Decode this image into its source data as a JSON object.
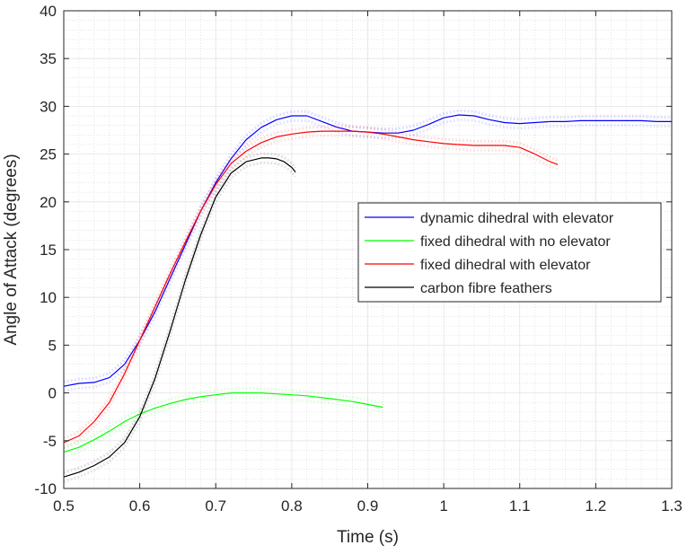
{
  "chart_data": {
    "type": "line",
    "xlabel": "Time (s)",
    "ylabel": "Angle of Attack (degrees)",
    "xlim": [
      0.5,
      1.3
    ],
    "ylim": [
      -10,
      40
    ],
    "xticks": [
      0.5,
      0.6,
      0.7,
      0.8,
      0.9,
      1,
      1.1,
      1.2,
      1.3
    ],
    "yticks": [
      -10,
      -5,
      0,
      5,
      10,
      15,
      20,
      25,
      30,
      35,
      40
    ],
    "grid": "major and minor",
    "legend_position": "right-center",
    "series": [
      {
        "name": "dynamic dihedral with elevator",
        "color": "#0000ff",
        "x": [
          0.5,
          0.52,
          0.54,
          0.56,
          0.58,
          0.6,
          0.62,
          0.64,
          0.66,
          0.68,
          0.7,
          0.72,
          0.74,
          0.76,
          0.78,
          0.8,
          0.82,
          0.84,
          0.86,
          0.88,
          0.9,
          0.92,
          0.94,
          0.96,
          0.98,
          1.0,
          1.02,
          1.04,
          1.06,
          1.08,
          1.1,
          1.12,
          1.14,
          1.16,
          1.18,
          1.2,
          1.22,
          1.24,
          1.26,
          1.28,
          1.3
        ],
        "y": [
          0.7,
          1.0,
          1.1,
          1.6,
          3.0,
          5.5,
          8.5,
          12.0,
          15.5,
          19.0,
          22.0,
          24.5,
          26.5,
          27.8,
          28.6,
          29.0,
          29.0,
          28.4,
          27.8,
          27.4,
          27.3,
          27.2,
          27.2,
          27.5,
          28.1,
          28.8,
          29.1,
          29.0,
          28.6,
          28.3,
          28.2,
          28.3,
          28.4,
          28.4,
          28.5,
          28.5,
          28.5,
          28.5,
          28.5,
          28.4,
          28.4
        ]
      },
      {
        "name": "fixed dihedral with no elevator",
        "color": "#00ff00",
        "x": [
          0.5,
          0.52,
          0.54,
          0.56,
          0.58,
          0.6,
          0.62,
          0.64,
          0.66,
          0.68,
          0.7,
          0.72,
          0.74,
          0.76,
          0.78,
          0.8,
          0.82,
          0.84,
          0.86,
          0.88,
          0.9,
          0.92
        ],
        "y": [
          -6.2,
          -5.7,
          -4.9,
          -4.0,
          -3.0,
          -2.2,
          -1.6,
          -1.1,
          -0.7,
          -0.4,
          -0.2,
          0.0,
          0.0,
          0.0,
          -0.1,
          -0.2,
          -0.3,
          -0.5,
          -0.7,
          -0.9,
          -1.2,
          -1.5
        ]
      },
      {
        "name": "fixed dihedral with elevator",
        "color": "#ff0000",
        "x": [
          0.5,
          0.52,
          0.54,
          0.56,
          0.58,
          0.6,
          0.62,
          0.64,
          0.66,
          0.68,
          0.7,
          0.72,
          0.74,
          0.76,
          0.78,
          0.8,
          0.82,
          0.84,
          0.86,
          0.88,
          0.9,
          0.92,
          0.94,
          0.96,
          0.98,
          1.0,
          1.02,
          1.04,
          1.06,
          1.08,
          1.1,
          1.12,
          1.14,
          1.15
        ],
        "y": [
          -5.2,
          -4.5,
          -3.0,
          -1.0,
          2.0,
          5.5,
          9.0,
          12.5,
          15.8,
          19.0,
          21.8,
          24.0,
          25.3,
          26.2,
          26.8,
          27.1,
          27.3,
          27.4,
          27.4,
          27.4,
          27.3,
          27.1,
          26.8,
          26.5,
          26.3,
          26.1,
          26.0,
          25.9,
          25.9,
          25.9,
          25.7,
          25.0,
          24.2,
          23.9
        ]
      },
      {
        "name": "carbon fibre feathers",
        "color": "#000000",
        "x": [
          0.5,
          0.52,
          0.54,
          0.56,
          0.58,
          0.6,
          0.62,
          0.64,
          0.66,
          0.68,
          0.7,
          0.72,
          0.74,
          0.76,
          0.77,
          0.78,
          0.79,
          0.8,
          0.805
        ],
        "y": [
          -8.8,
          -8.3,
          -7.6,
          -6.7,
          -5.2,
          -2.5,
          1.5,
          6.5,
          11.8,
          16.5,
          20.5,
          23.0,
          24.2,
          24.6,
          24.6,
          24.5,
          24.2,
          23.6,
          23.1
        ]
      }
    ]
  }
}
